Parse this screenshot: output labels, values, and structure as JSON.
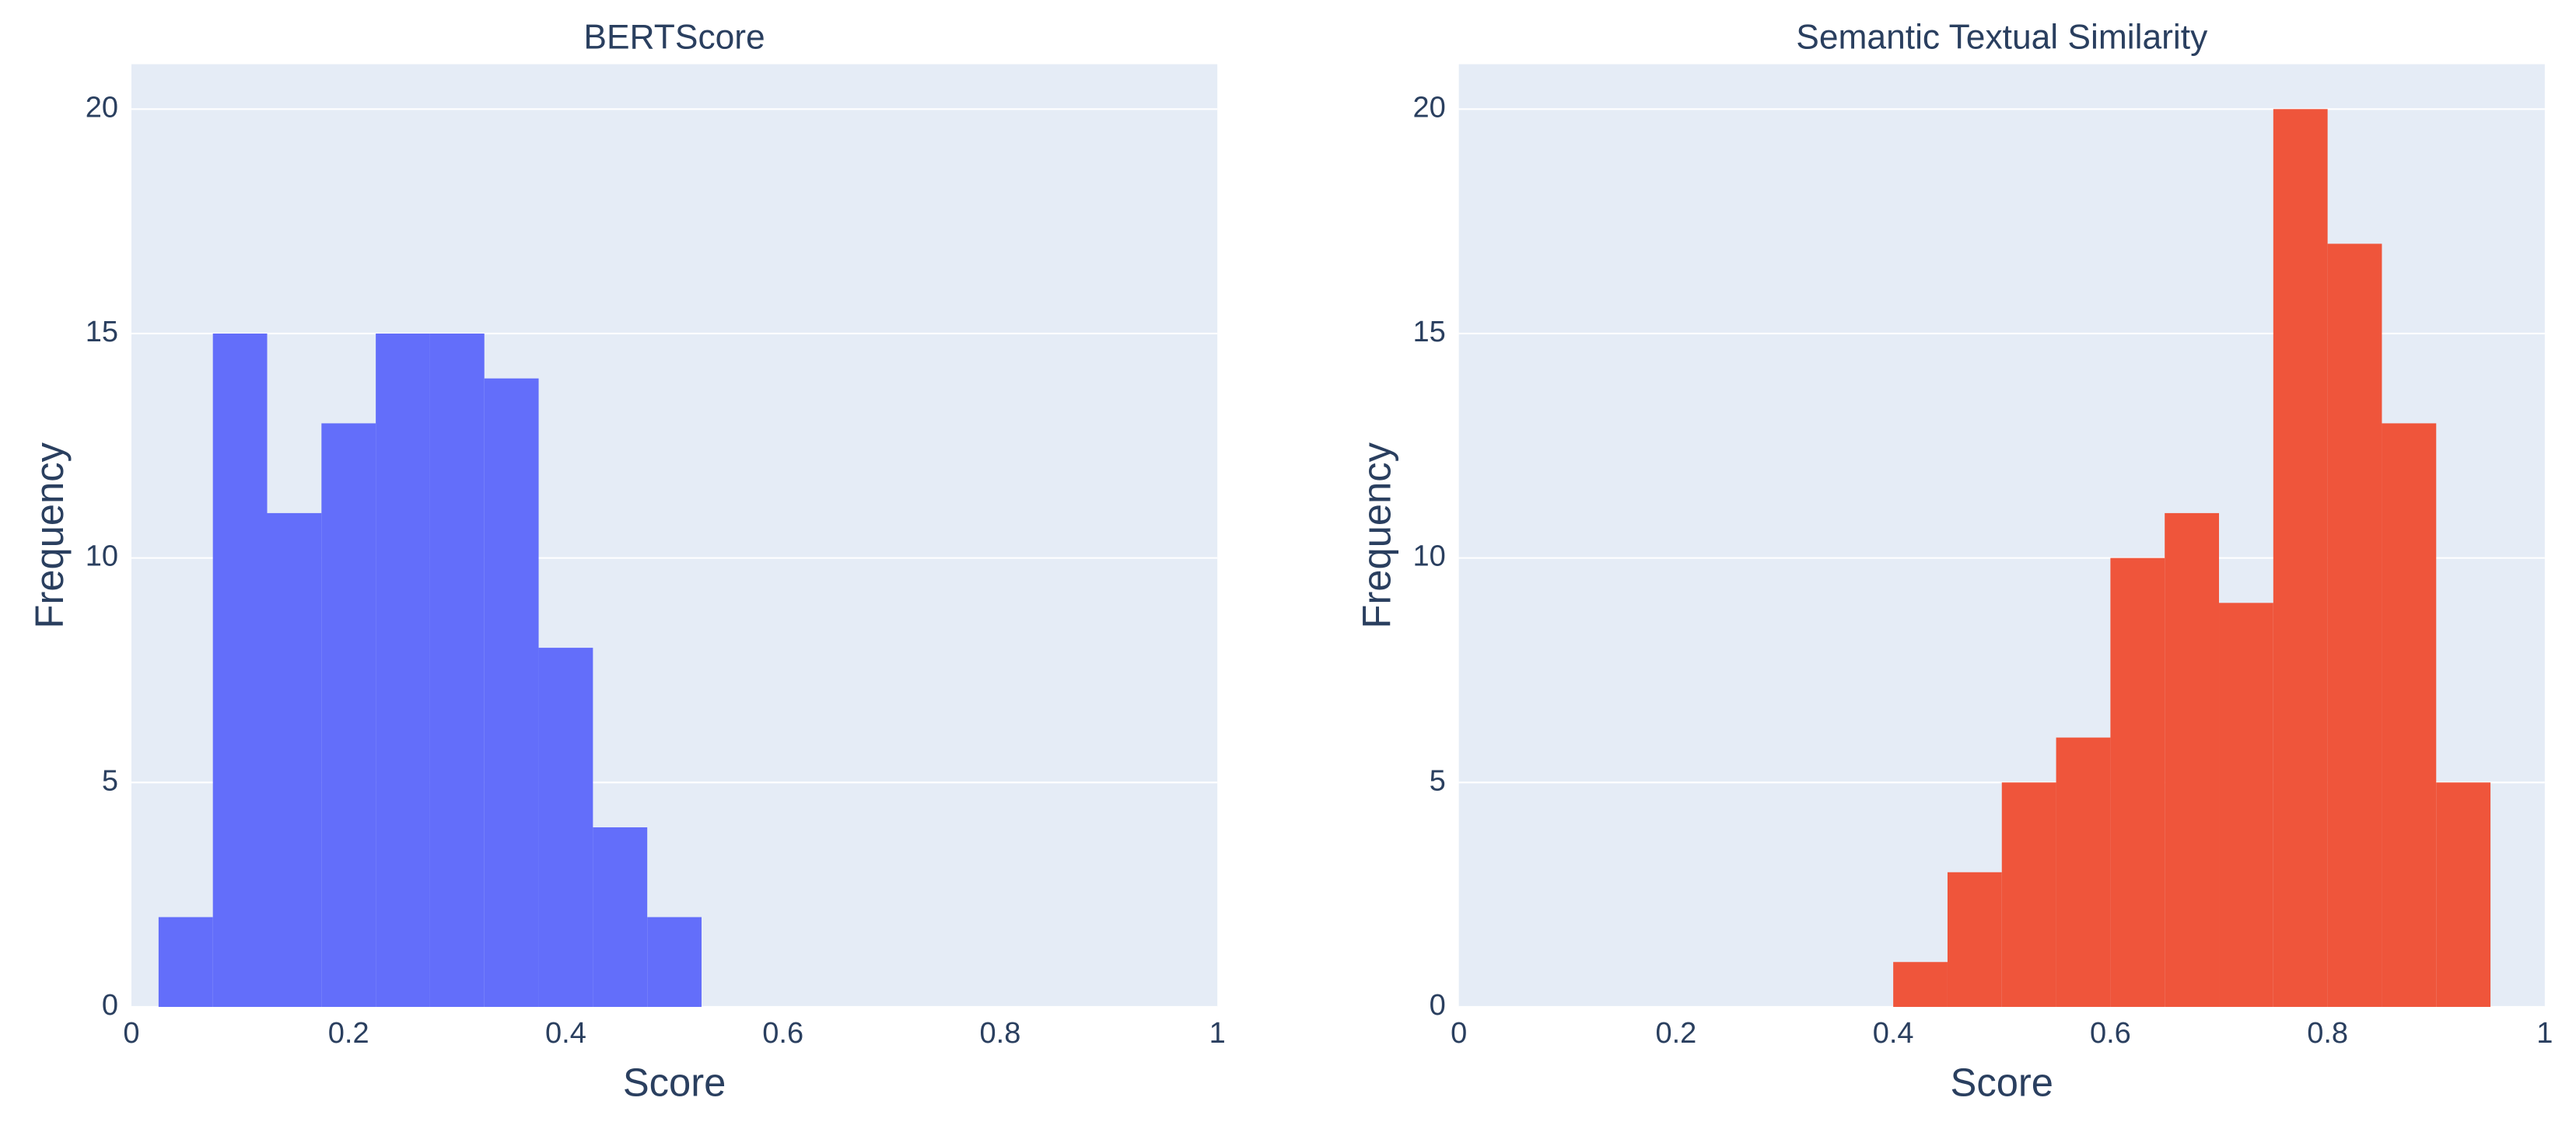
{
  "chart_data": [
    {
      "type": "histogram",
      "title": "BERTScore",
      "x_label": "Score",
      "y_label": "Frequency",
      "color": "#636efa",
      "bins": [
        0.025,
        0.075,
        0.125,
        0.175,
        0.225,
        0.275,
        0.325,
        0.375,
        0.425,
        0.475,
        0.525
      ],
      "values": [
        2,
        15,
        11,
        13,
        15,
        15,
        14,
        8,
        4,
        2
      ],
      "xlim": [
        0,
        1
      ],
      "xticks": [
        0,
        0.2,
        0.4,
        0.6,
        0.8,
        1
      ],
      "ylim": [
        0,
        21
      ],
      "yticks": [
        0,
        5,
        10,
        15,
        20
      ],
      "grid": true
    },
    {
      "type": "histogram",
      "title": "Semantic Textual Similarity",
      "x_label": "Score",
      "y_label": "Frequency",
      "color": "#ef553b",
      "bins": [
        0.4,
        0.45,
        0.5,
        0.55,
        0.6,
        0.65,
        0.7,
        0.75,
        0.8,
        0.85,
        0.9,
        0.95
      ],
      "values": [
        1,
        3,
        5,
        6,
        10,
        11,
        9,
        20,
        17,
        13,
        5
      ],
      "xlim": [
        0,
        1
      ],
      "xticks": [
        0,
        0.2,
        0.4,
        0.6,
        0.8,
        1
      ],
      "ylim": [
        0,
        21
      ],
      "yticks": [
        0,
        5,
        10,
        15,
        20
      ],
      "grid": true
    }
  ]
}
